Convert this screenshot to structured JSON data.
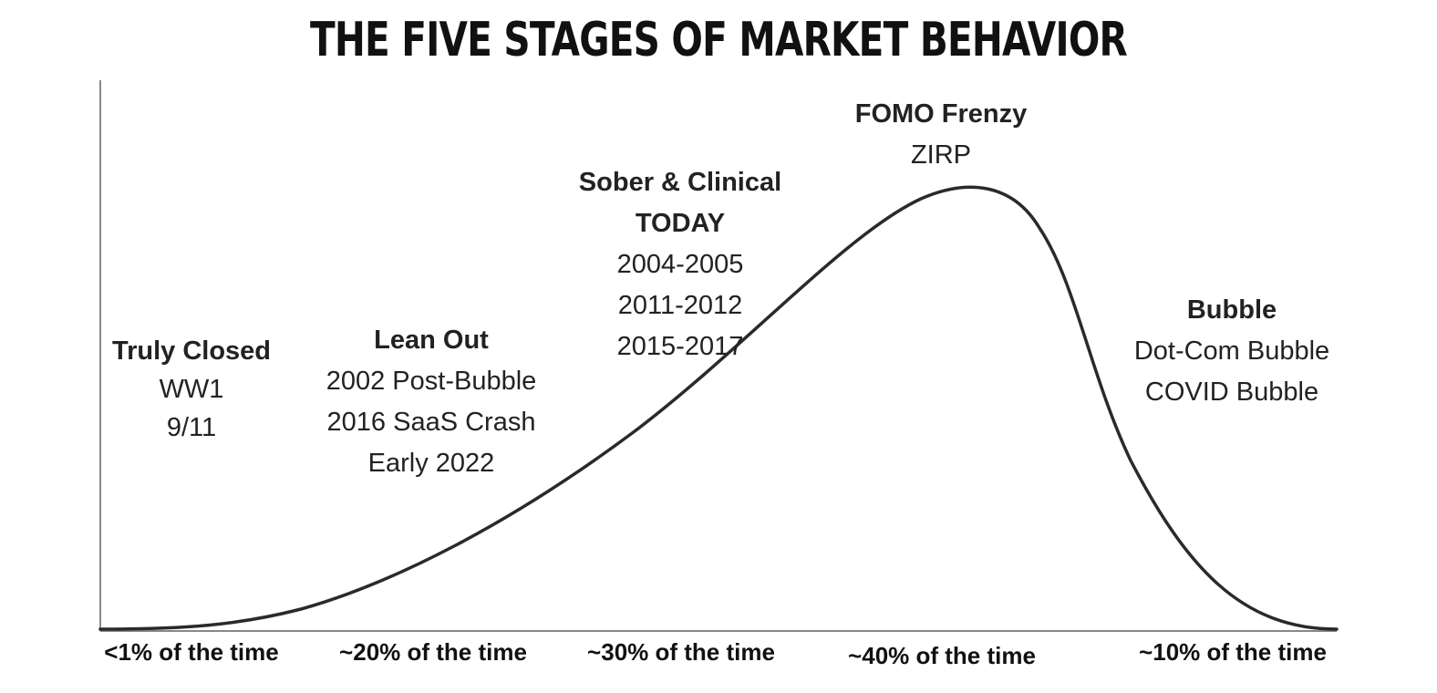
{
  "title": "THE FIVE STAGES OF MARKET BEHAVIOR",
  "stages": [
    {
      "name": "Truly Closed",
      "examples": [
        "WW1",
        "9/11"
      ],
      "share": "<1% of the time"
    },
    {
      "name": "Lean Out",
      "examples": [
        "2002 Post-Bubble",
        "2016 SaaS Crash",
        "Early 2022"
      ],
      "share": "~20% of the time"
    },
    {
      "name": "Sober & Clinical",
      "highlight": "TODAY",
      "examples": [
        "2004-2005",
        "2011-2012",
        "2015-2017"
      ],
      "share": "~30% of the time"
    },
    {
      "name": "FOMO Frenzy",
      "examples": [
        "ZIRP"
      ],
      "share": "~40% of the time"
    },
    {
      "name": "Bubble",
      "examples": [
        "Dot-Com Bubble",
        "COVID Bubble"
      ],
      "share": "~10% of the time"
    }
  ],
  "colors": {
    "curve": "#2a2a2a",
    "axis": "#888888",
    "text": "#222222"
  }
}
